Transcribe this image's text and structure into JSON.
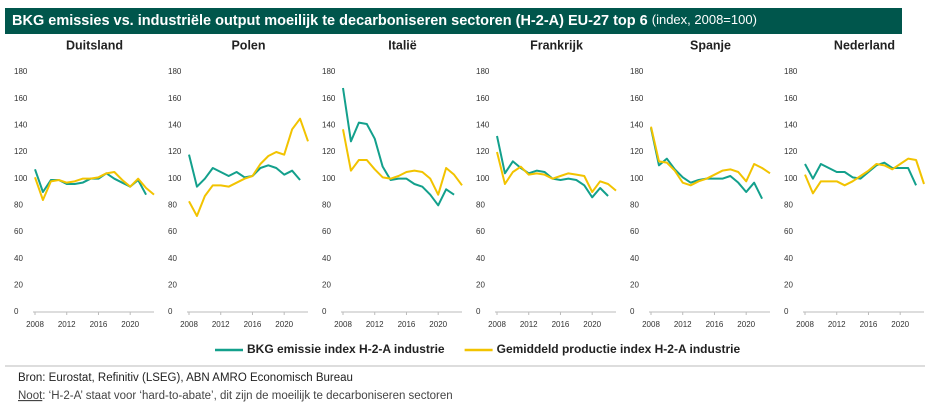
{
  "title": "BKG emissies vs. industriële output moeilijk te decarboniseren sectoren (H-2-A) EU-27 top 6",
  "subtitle": "(index, 2008=100)",
  "source": "Bron: Eurostat, Refinitiv (LSEG), ABN AMRO Economisch Bureau",
  "note_label": "Noot",
  "note": ": ‘H-2-A’ staat voor ‘hard-to-abate’, dit zijn de moeilijk te decarboniseren sectoren",
  "chart_data": [
    {
      "type": "line",
      "title": "Duitsland",
      "x": [
        2008,
        2009,
        2010,
        2011,
        2012,
        2013,
        2014,
        2015,
        2016,
        2017,
        2018,
        2019,
        2020,
        2021,
        2022,
        2023
      ],
      "xlim": [
        2008,
        2023
      ],
      "xticks": [
        2008,
        2012,
        2016,
        2020
      ],
      "ylim": [
        0,
        180
      ],
      "yticks": [
        0,
        20,
        40,
        60,
        80,
        100,
        120,
        140,
        160,
        180
      ],
      "series": [
        {
          "name": "BKG emissie index H-2-A industrie",
          "color": "#13a08c",
          "values": [
            107,
            90,
            99,
            99,
            96,
            96,
            97,
            100,
            100,
            104,
            100,
            97,
            94,
            99,
            88,
            null
          ]
        },
        {
          "name": "Gemiddeld productie index H-2-A industrie",
          "color": "#f2c300",
          "values": [
            101,
            84,
            98,
            99,
            97,
            98,
            100,
            100,
            101,
            104,
            105,
            99,
            94,
            100,
            93,
            88
          ]
        }
      ]
    },
    {
      "type": "line",
      "title": "Polen",
      "x": [
        2008,
        2009,
        2010,
        2011,
        2012,
        2013,
        2014,
        2015,
        2016,
        2017,
        2018,
        2019,
        2020,
        2021,
        2022,
        2023
      ],
      "xlim": [
        2008,
        2023
      ],
      "xticks": [
        2008,
        2012,
        2016,
        2020
      ],
      "ylim": [
        0,
        180
      ],
      "yticks": [
        0,
        20,
        40,
        60,
        80,
        100,
        120,
        140,
        160,
        180
      ],
      "series": [
        {
          "color": "#13a08c",
          "values": [
            118,
            94,
            100,
            108,
            105,
            102,
            105,
            101,
            102,
            108,
            110,
            108,
            103,
            106,
            99,
            null
          ]
        },
        {
          "color": "#f2c300",
          "values": [
            83,
            72,
            87,
            95,
            95,
            94,
            97,
            100,
            102,
            111,
            117,
            120,
            118,
            137,
            145,
            128
          ]
        }
      ]
    },
    {
      "type": "line",
      "title": "Italië",
      "x": [
        2008,
        2009,
        2010,
        2011,
        2012,
        2013,
        2014,
        2015,
        2016,
        2017,
        2018,
        2019,
        2020,
        2021,
        2022,
        2023
      ],
      "xlim": [
        2008,
        2023
      ],
      "xticks": [
        2008,
        2012,
        2016,
        2020
      ],
      "ylim": [
        0,
        180
      ],
      "yticks": [
        0,
        20,
        40,
        60,
        80,
        100,
        120,
        140,
        160,
        180
      ],
      "series": [
        {
          "color": "#13a08c",
          "values": [
            168,
            128,
            142,
            141,
            130,
            109,
            99,
            100,
            100,
            96,
            94,
            88,
            80,
            92,
            88,
            null
          ]
        },
        {
          "color": "#f2c300",
          "values": [
            137,
            106,
            114,
            114,
            107,
            101,
            100,
            102,
            105,
            106,
            105,
            100,
            88,
            108,
            103,
            95
          ]
        }
      ]
    },
    {
      "type": "line",
      "title": "Frankrijk",
      "x": [
        2008,
        2009,
        2010,
        2011,
        2012,
        2013,
        2014,
        2015,
        2016,
        2017,
        2018,
        2019,
        2020,
        2021,
        2022,
        2023
      ],
      "xlim": [
        2008,
        2023
      ],
      "xticks": [
        2008,
        2012,
        2016,
        2020
      ],
      "ylim": [
        0,
        180
      ],
      "yticks": [
        0,
        20,
        40,
        60,
        80,
        100,
        120,
        140,
        160,
        180
      ],
      "series": [
        {
          "color": "#13a08c",
          "values": [
            132,
            104,
            113,
            108,
            104,
            106,
            105,
            100,
            99,
            100,
            99,
            95,
            86,
            93,
            87,
            null
          ]
        },
        {
          "color": "#f2c300",
          "values": [
            120,
            96,
            105,
            109,
            103,
            104,
            103,
            100,
            102,
            104,
            103,
            102,
            90,
            98,
            96,
            91
          ]
        }
      ]
    },
    {
      "type": "line",
      "title": "Spanje",
      "x": [
        2008,
        2009,
        2010,
        2011,
        2012,
        2013,
        2014,
        2015,
        2016,
        2017,
        2018,
        2019,
        2020,
        2021,
        2022,
        2023
      ],
      "xlim": [
        2008,
        2023
      ],
      "xticks": [
        2008,
        2012,
        2016,
        2020
      ],
      "ylim": [
        0,
        180
      ],
      "yticks": [
        0,
        20,
        40,
        60,
        80,
        100,
        120,
        140,
        160,
        180
      ],
      "series": [
        {
          "color": "#13a08c",
          "values": [
            138,
            110,
            115,
            107,
            101,
            97,
            99,
            100,
            100,
            100,
            102,
            97,
            90,
            97,
            85,
            null
          ]
        },
        {
          "color": "#f2c300",
          "values": [
            139,
            113,
            112,
            106,
            97,
            95,
            98,
            100,
            103,
            106,
            107,
            105,
            98,
            111,
            108,
            104
          ]
        }
      ]
    },
    {
      "type": "line",
      "title": "Nederland",
      "x": [
        2008,
        2009,
        2010,
        2011,
        2012,
        2013,
        2014,
        2015,
        2016,
        2017,
        2018,
        2019,
        2020,
        2021,
        2022,
        2023
      ],
      "xlim": [
        2008,
        2023
      ],
      "xticks": [
        2008,
        2012,
        2016,
        2020
      ],
      "ylim": [
        0,
        180
      ],
      "yticks": [
        0,
        20,
        40,
        60,
        80,
        100,
        120,
        140,
        160,
        180
      ],
      "series": [
        {
          "color": "#13a08c",
          "values": [
            111,
            100,
            111,
            108,
            105,
            105,
            101,
            100,
            105,
            110,
            112,
            108,
            108,
            108,
            95,
            null
          ]
        },
        {
          "color": "#f2c300",
          "values": [
            103,
            89,
            98,
            98,
            98,
            95,
            98,
            102,
            106,
            111,
            110,
            107,
            111,
            115,
            114,
            96
          ]
        }
      ]
    }
  ]
}
